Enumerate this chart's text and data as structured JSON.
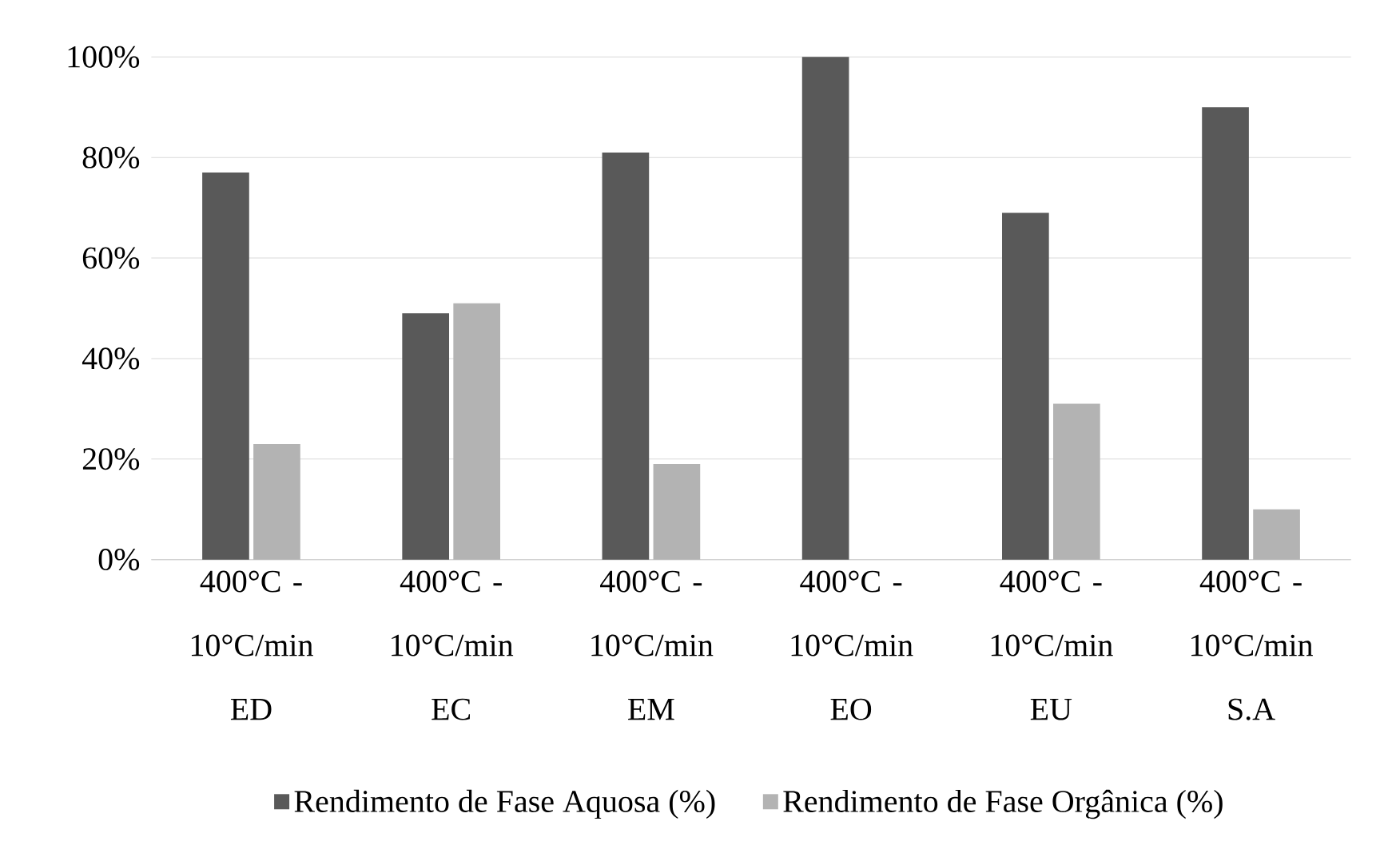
{
  "chart_data": {
    "type": "bar",
    "categories": [
      "400°C - 10°C/min ED",
      "400°C - 10°C/min EC",
      "400°C - 10°C/min EM",
      "400°C - 10°C/min EO",
      "400°C - 10°C/min EU",
      "400°C - 10°C/min S.A"
    ],
    "series": [
      {
        "name": "Rendimento de Fase Aquosa (%)",
        "color": "#595959",
        "values": [
          77,
          49,
          81,
          100,
          69,
          90
        ]
      },
      {
        "name": "Rendimento de Fase Orgânica (%)",
        "color": "#b3b3b3",
        "values": [
          23,
          51,
          19,
          0,
          31,
          10
        ]
      }
    ],
    "ylim": [
      0,
      100
    ],
    "yticks": [
      {
        "value": 0,
        "label": "0%"
      },
      {
        "value": 20,
        "label": "20%"
      },
      {
        "value": 40,
        "label": "40%"
      },
      {
        "value": 60,
        "label": "60%"
      },
      {
        "value": 80,
        "label": "80%"
      },
      {
        "value": 100,
        "label": "100%"
      }
    ],
    "grid": "y",
    "legend": "bottom"
  }
}
